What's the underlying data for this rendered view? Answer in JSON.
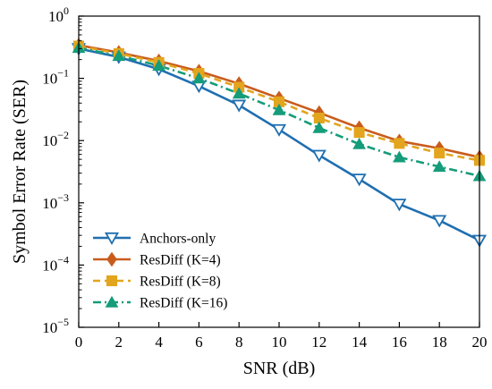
{
  "chart_data": {
    "type": "line",
    "xlabel": "SNR (dB)",
    "ylabel": "Symbol Error Rate (SER)",
    "xlim": [
      0,
      20
    ],
    "ylim": [
      1e-05,
      1
    ],
    "yscale": "log",
    "grid": false,
    "legend_position": "bottom-left",
    "x": [
      0,
      2,
      4,
      6,
      8,
      10,
      12,
      14,
      16,
      18,
      20
    ],
    "x_ticks": [
      "0",
      "2",
      "4",
      "6",
      "8",
      "10",
      "12",
      "14",
      "16",
      "18",
      "20"
    ],
    "y_ticks": [
      {
        "value": 1,
        "base": "10",
        "exp": "0"
      },
      {
        "value": 0.1,
        "base": "10",
        "exp": "−1"
      },
      {
        "value": 0.01,
        "base": "10",
        "exp": "−2"
      },
      {
        "value": 0.001,
        "base": "10",
        "exp": "−3"
      },
      {
        "value": 0.0001,
        "base": "10",
        "exp": "−4"
      },
      {
        "value": 1e-05,
        "base": "10",
        "exp": "−5"
      }
    ],
    "series": [
      {
        "name": "Anchors-only",
        "color": "#1f6fb0",
        "marker": "triangle-down-open",
        "dash": "solid",
        "values": [
          0.3,
          0.22,
          0.14,
          0.075,
          0.037,
          0.015,
          0.0058,
          0.0024,
          0.00095,
          0.00052,
          0.00025
        ]
      },
      {
        "name": "ResDiff (K=4)",
        "color": "#c95c1c",
        "marker": "diamond",
        "dash": "solid",
        "values": [
          0.34,
          0.26,
          0.19,
          0.13,
          0.082,
          0.048,
          0.028,
          0.016,
          0.0098,
          0.0075,
          0.0054
        ]
      },
      {
        "name": "ResDiff (K=8)",
        "color": "#e3a51d",
        "marker": "square",
        "dash": "dashed",
        "values": [
          0.33,
          0.25,
          0.18,
          0.12,
          0.072,
          0.042,
          0.023,
          0.0135,
          0.009,
          0.0063,
          0.0048
        ]
      },
      {
        "name": "ResDiff (K=16)",
        "color": "#159c7a",
        "marker": "triangle-up",
        "dash": "dashdot",
        "values": [
          0.31,
          0.23,
          0.16,
          0.1,
          0.057,
          0.031,
          0.016,
          0.0088,
          0.0054,
          0.0038,
          0.0027
        ]
      }
    ]
  }
}
